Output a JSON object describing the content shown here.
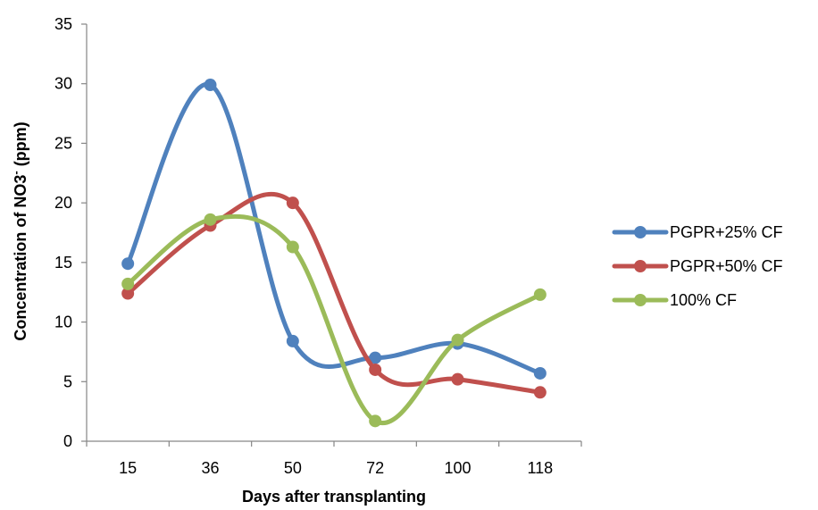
{
  "chart_data": {
    "type": "line",
    "smooth": true,
    "categories": [
      "15",
      "36",
      "50",
      "72",
      "100",
      "118"
    ],
    "series": [
      {
        "name": "PGPR+25% CF",
        "color": "#4f81bd",
        "values": [
          14.9,
          29.9,
          8.4,
          7.0,
          8.2,
          5.7
        ]
      },
      {
        "name": "PGPR+50% CF",
        "color": "#c0504d",
        "values": [
          12.4,
          18.1,
          20.0,
          6.0,
          5.2,
          4.1
        ]
      },
      {
        "name": "100% CF",
        "color": "#9bbb59",
        "values": [
          13.2,
          18.6,
          16.3,
          1.7,
          8.5,
          12.3
        ]
      }
    ],
    "y_ticks": [
      "0",
      "5",
      "10",
      "15",
      "20",
      "25",
      "30",
      "35"
    ],
    "ylim": [
      0,
      35
    ],
    "xlabel": "Days after transplanting",
    "ylabel_main": "Concentration of NO3",
    "ylabel_superscript": "-",
    "ylabel_units": " (ppm)",
    "legend_position": "right",
    "grid": false
  }
}
